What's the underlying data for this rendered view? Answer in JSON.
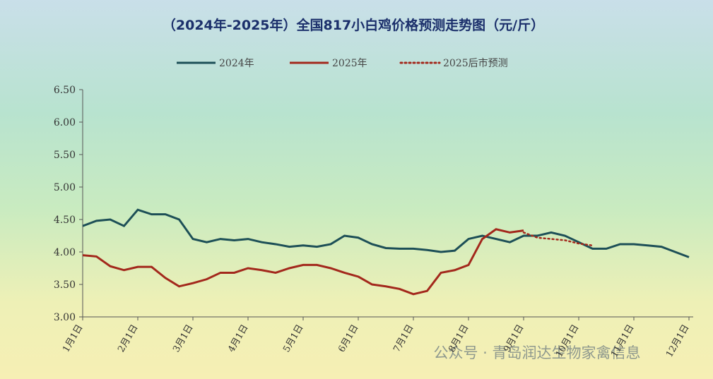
{
  "chart_data": {
    "type": "line",
    "title": "（2024年-2025年）全国817小白鸡价格预测走势图（元/斤）",
    "watermark": "公众号 · 青岛润达生物家禽信息",
    "categories": [
      "1月1日",
      null,
      null,
      null,
      "2月1日",
      null,
      null,
      null,
      "3月1日",
      null,
      null,
      null,
      "4月1日",
      null,
      null,
      null,
      "5月1日",
      null,
      null,
      null,
      "6月1日",
      null,
      null,
      null,
      "7月1日",
      null,
      null,
      null,
      "8月1日",
      null,
      null,
      null,
      "9月1日",
      null,
      null,
      null,
      "10月1日",
      null,
      null,
      null,
      "11月1日",
      null,
      null,
      null,
      "12月1日"
    ],
    "series": [
      {
        "name": "2024年",
        "color": "#1d4f57",
        "style": "solid",
        "values": [
          4.4,
          4.48,
          4.5,
          4.4,
          4.65,
          4.58,
          4.58,
          4.5,
          4.2,
          4.15,
          4.2,
          4.18,
          4.2,
          4.15,
          4.12,
          4.08,
          4.1,
          4.08,
          4.12,
          4.25,
          4.22,
          4.12,
          4.06,
          4.05,
          4.05,
          4.03,
          4.0,
          4.02,
          4.2,
          4.25,
          4.2,
          4.15,
          4.25,
          4.25,
          4.3,
          4.25,
          4.15,
          4.05,
          4.05,
          4.12,
          4.12,
          4.1,
          4.08,
          4.0,
          3.92
        ]
      },
      {
        "name": "2025年",
        "color": "#a3281c",
        "style": "solid",
        "values": [
          3.95,
          3.93,
          3.78,
          3.72,
          3.77,
          3.77,
          3.6,
          3.47,
          3.52,
          3.58,
          3.68,
          3.68,
          3.75,
          3.72,
          3.68,
          3.75,
          3.8,
          3.8,
          3.75,
          3.68,
          3.62,
          3.5,
          3.47,
          3.43,
          3.35,
          3.4,
          3.68,
          3.72,
          3.8,
          4.2,
          4.35,
          4.3,
          4.33,
          null,
          null,
          null,
          null,
          null,
          null,
          null,
          null,
          null,
          null,
          null,
          null
        ]
      },
      {
        "name": "2025后市预测",
        "color": "#a3281c",
        "style": "dotted",
        "values": [
          null,
          null,
          null,
          null,
          null,
          null,
          null,
          null,
          null,
          null,
          null,
          null,
          null,
          null,
          null,
          null,
          null,
          null,
          null,
          null,
          null,
          null,
          null,
          null,
          null,
          null,
          null,
          null,
          null,
          null,
          null,
          null,
          4.3,
          4.22,
          4.2,
          4.18,
          4.13,
          4.1,
          null,
          null,
          null,
          null,
          null,
          null,
          null
        ]
      }
    ],
    "ylim": [
      3.0,
      6.5
    ],
    "yticks": [
      {
        "value": 3.0,
        "label": "3.00"
      },
      {
        "value": 3.5,
        "label": "3.50"
      },
      {
        "value": 4.0,
        "label": "4.00"
      },
      {
        "value": 4.5,
        "label": "4.50"
      },
      {
        "value": 5.0,
        "label": "5.00"
      },
      {
        "value": 5.5,
        "label": "5.50"
      },
      {
        "value": 6.0,
        "label": "6.00"
      },
      {
        "value": 6.5,
        "label": "6.50"
      }
    ],
    "grid": false,
    "legend": "top"
  }
}
